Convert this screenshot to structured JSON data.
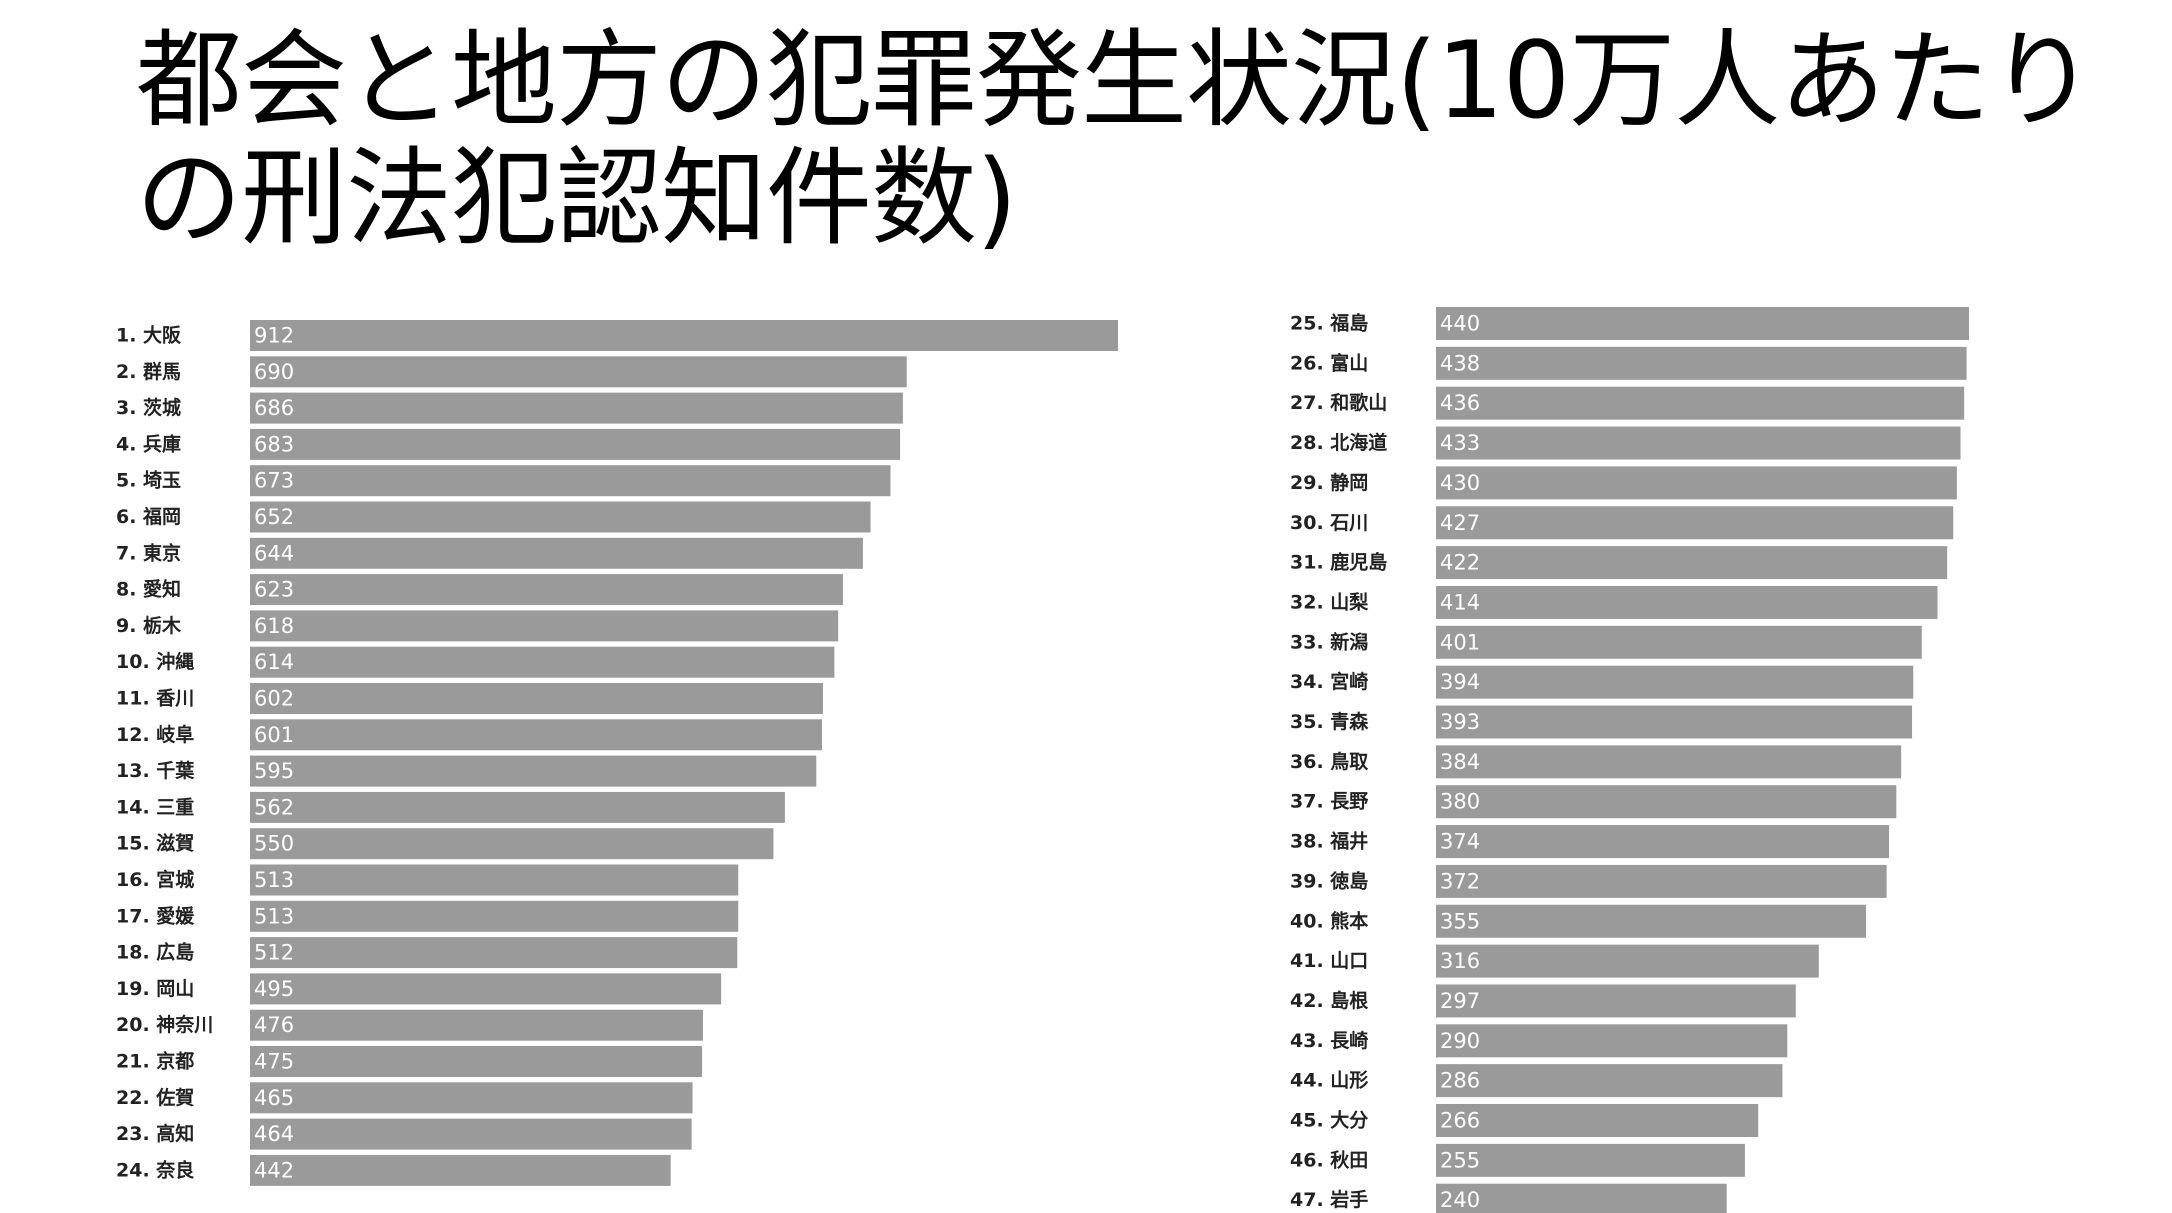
{
  "title": "都会と地方の犯罪発生状況(10万人あたりの刑法犯認知件数)",
  "colors": {
    "bar": "#9a9a9a",
    "value_text": "#ffffff",
    "label_text": "#222222"
  },
  "chart_data": [
    {
      "type": "bar",
      "orientation": "horizontal",
      "categories": [
        "1. 大阪",
        "2. 群馬",
        "3. 茨城",
        "4. 兵庫",
        "5. 埼玉",
        "6. 福岡",
        "7. 東京",
        "8. 愛知",
        "9. 栃木",
        "10. 沖縄",
        "11. 香川",
        "12. 岐阜",
        "13. 千葉",
        "14. 三重",
        "15. 滋賀",
        "16. 宮城",
        "17. 愛媛",
        "18. 広島",
        "19. 岡山",
        "20. 神奈川",
        "21. 京都",
        "22. 佐賀",
        "23. 高知",
        "24. 奈良"
      ],
      "values": [
        912,
        690,
        686,
        683,
        673,
        652,
        644,
        623,
        618,
        614,
        602,
        601,
        595,
        562,
        550,
        513,
        513,
        512,
        495,
        476,
        475,
        465,
        464,
        442
      ],
      "value_labels": [
        "912",
        "690",
        "686",
        "683",
        "673",
        "652",
        "644",
        "623",
        "618",
        "614",
        "602",
        "601",
        "595",
        "562",
        "550",
        "513",
        "513",
        "512",
        "495",
        "476",
        "475",
        "465",
        "464",
        "442"
      ],
      "xlim": [
        0,
        912
      ],
      "grid": false,
      "legend": "none"
    },
    {
      "type": "bar",
      "orientation": "horizontal",
      "categories": [
        "25. 福島",
        "26. 富山",
        "27. 和歌山",
        "28. 北海道",
        "29. 静岡",
        "30. 石川",
        "31. 鹿児島",
        "32. 山梨",
        "33. 新潟",
        "34. 宮崎",
        "35. 青森",
        "36. 鳥取",
        "37. 長野",
        "38. 福井",
        "39. 徳島",
        "40. 熊本",
        "41. 山口",
        "42. 島根",
        "43. 長崎",
        "44. 山形",
        "45. 大分",
        "46. 秋田",
        "47. 岩手"
      ],
      "values": [
        440,
        438,
        436,
        433,
        430,
        427,
        422,
        414,
        401,
        394,
        393,
        384,
        380,
        374,
        372,
        355,
        316,
        297,
        290,
        286,
        266,
        255,
        240
      ],
      "value_labels": [
        "440",
        "438",
        "436",
        "433",
        "430",
        "427",
        "422",
        "414",
        "401",
        "394",
        "393",
        "384",
        "380",
        "374",
        "372",
        "355",
        "316",
        "297",
        "290",
        "286",
        "266",
        "255",
        "240"
      ],
      "xlim": [
        0,
        440
      ],
      "grid": false,
      "legend": "none"
    }
  ]
}
